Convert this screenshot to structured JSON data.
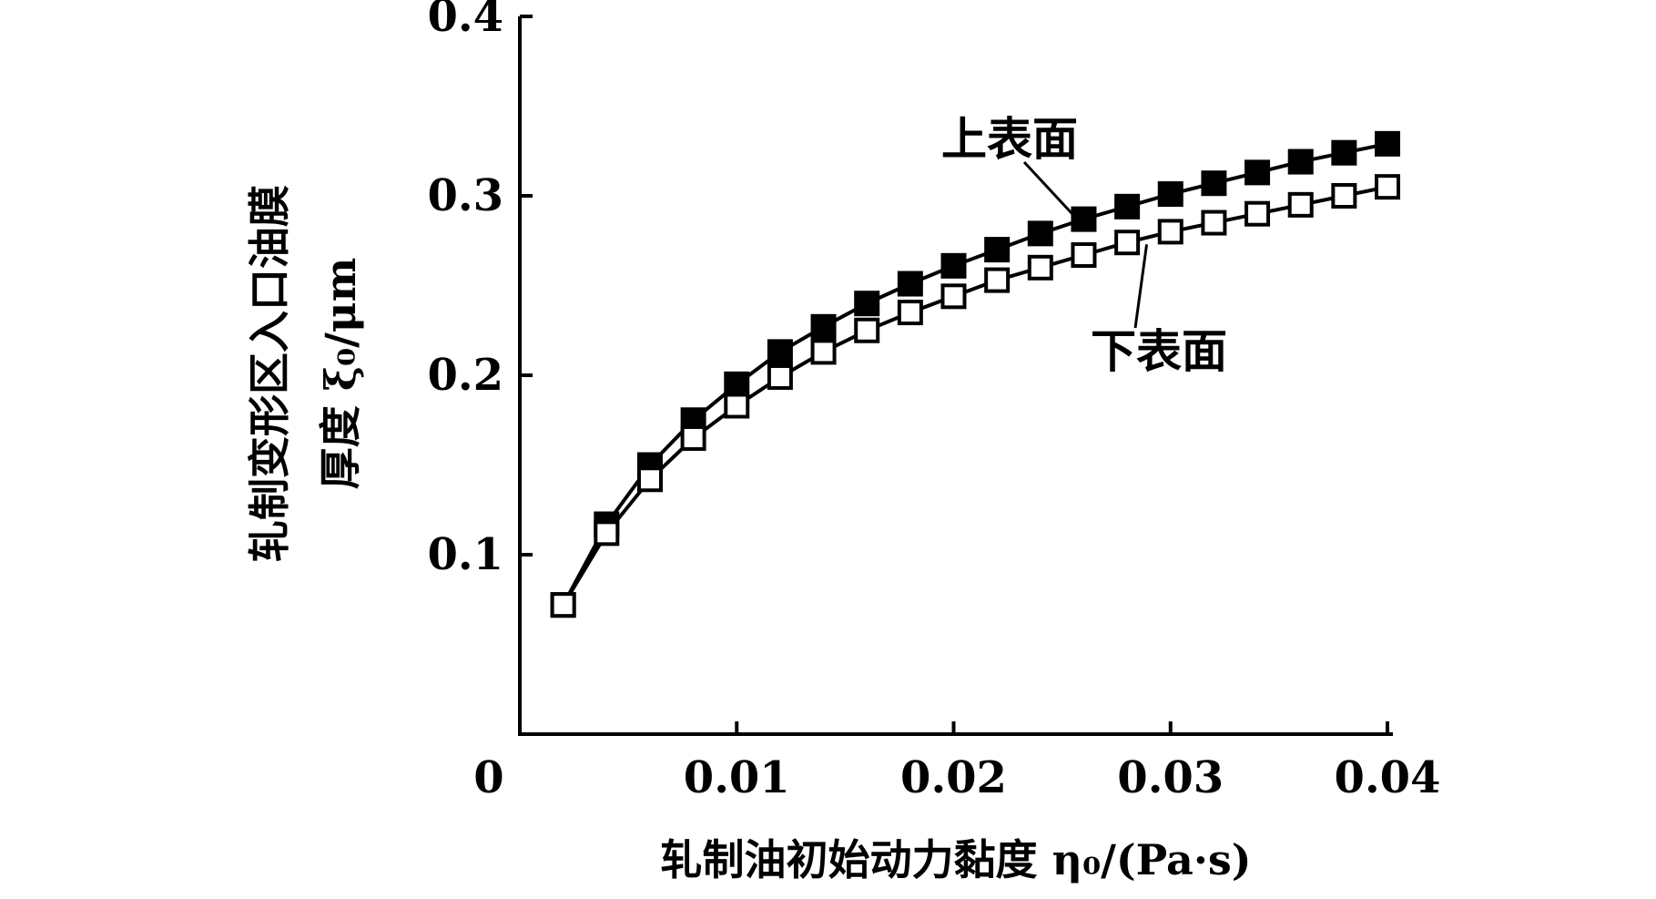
{
  "chart_data": {
    "type": "line",
    "title": "",
    "xlabel": "轧制油初始动力黏度 η₀/(Pa·s)",
    "ylabel_line1": "轧制变形区入口油膜",
    "ylabel_line2": "厚度 ξ₀/μm",
    "xlim": [
      0,
      0.04
    ],
    "ylim": [
      0,
      0.4
    ],
    "x_ticks": [
      0,
      0.01,
      0.02,
      0.03,
      0.04
    ],
    "x_tick_labels": [
      "0",
      "0.01",
      "0.02",
      "0.03",
      "0.04"
    ],
    "y_ticks": [
      0.1,
      0.2,
      0.3,
      0.4
    ],
    "y_tick_labels": [
      "0.1",
      "0.2",
      "0.3",
      "0.4"
    ],
    "grid": false,
    "x": [
      0.002,
      0.004,
      0.006,
      0.008,
      0.01,
      0.012,
      0.014,
      0.016,
      0.018,
      0.02,
      0.022,
      0.024,
      0.026,
      0.028,
      0.03,
      0.032,
      0.034,
      0.036,
      0.038,
      0.04
    ],
    "series": [
      {
        "name": "上表面",
        "marker": "filled-square",
        "values": [
          0.072,
          0.117,
          0.15,
          0.175,
          0.195,
          0.213,
          0.227,
          0.24,
          0.251,
          0.261,
          0.27,
          0.279,
          0.287,
          0.294,
          0.301,
          0.307,
          0.313,
          0.319,
          0.324,
          0.329
        ]
      },
      {
        "name": "下表面",
        "marker": "open-square",
        "values": [
          0.072,
          0.112,
          0.142,
          0.165,
          0.183,
          0.199,
          0.213,
          0.225,
          0.235,
          0.244,
          0.253,
          0.26,
          0.267,
          0.274,
          0.28,
          0.285,
          0.29,
          0.295,
          0.3,
          0.305
        ]
      }
    ],
    "annotations": [
      {
        "text": "上表面",
        "series": "上表面"
      },
      {
        "text": "下表面",
        "series": "下表面"
      }
    ]
  }
}
